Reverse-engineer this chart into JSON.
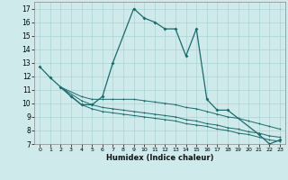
{
  "xlabel": "Humidex (Indice chaleur)",
  "background_color": "#ceeaea",
  "grid_color": "#aad4d4",
  "line_color": "#1a6b6b",
  "xlim": [
    -0.5,
    23.5
  ],
  "ylim": [
    7,
    17.5
  ],
  "xticks": [
    0,
    1,
    2,
    3,
    4,
    5,
    6,
    7,
    8,
    9,
    10,
    11,
    12,
    13,
    14,
    15,
    16,
    17,
    18,
    19,
    20,
    21,
    22,
    23
  ],
  "yticks": [
    7,
    8,
    9,
    10,
    11,
    12,
    13,
    14,
    15,
    16,
    17
  ],
  "series": [
    {
      "x": [
        0,
        1,
        2,
        3,
        4,
        5,
        6,
        7,
        9,
        10,
        11,
        12,
        13,
        14,
        15,
        16,
        17,
        18,
        21,
        22,
        23
      ],
      "y": [
        12.7,
        11.9,
        11.2,
        10.5,
        9.9,
        9.9,
        10.5,
        13.0,
        17.0,
        16.3,
        16.0,
        15.5,
        15.5,
        13.5,
        15.5,
        10.3,
        9.5,
        9.5,
        7.7,
        7.0,
        7.3
      ]
    },
    {
      "x": [
        2,
        4,
        5,
        6,
        7,
        8,
        9,
        10,
        11,
        12,
        13,
        14,
        15,
        16,
        17,
        18,
        19,
        20,
        21,
        22,
        23
      ],
      "y": [
        11.2,
        10.5,
        10.3,
        10.3,
        10.3,
        10.3,
        10.3,
        10.2,
        10.1,
        10.0,
        9.9,
        9.7,
        9.6,
        9.4,
        9.2,
        9.0,
        8.9,
        8.7,
        8.5,
        8.3,
        8.1
      ]
    },
    {
      "x": [
        2,
        4,
        5,
        6,
        7,
        8,
        9,
        10,
        11,
        12,
        13,
        14,
        15,
        16,
        17,
        18,
        19,
        20,
        21,
        22,
        23
      ],
      "y": [
        11.2,
        10.2,
        9.9,
        9.7,
        9.6,
        9.5,
        9.4,
        9.3,
        9.2,
        9.1,
        9.0,
        8.8,
        8.7,
        8.5,
        8.4,
        8.2,
        8.1,
        7.9,
        7.8,
        7.6,
        7.5
      ]
    },
    {
      "x": [
        2,
        4,
        5,
        6,
        7,
        8,
        9,
        10,
        11,
        12,
        13,
        14,
        15,
        16,
        17,
        18,
        19,
        20,
        21,
        22,
        23
      ],
      "y": [
        11.2,
        9.9,
        9.6,
        9.4,
        9.3,
        9.2,
        9.1,
        9.0,
        8.9,
        8.8,
        8.7,
        8.5,
        8.4,
        8.3,
        8.1,
        8.0,
        7.8,
        7.7,
        7.5,
        7.3,
        7.2
      ]
    }
  ]
}
